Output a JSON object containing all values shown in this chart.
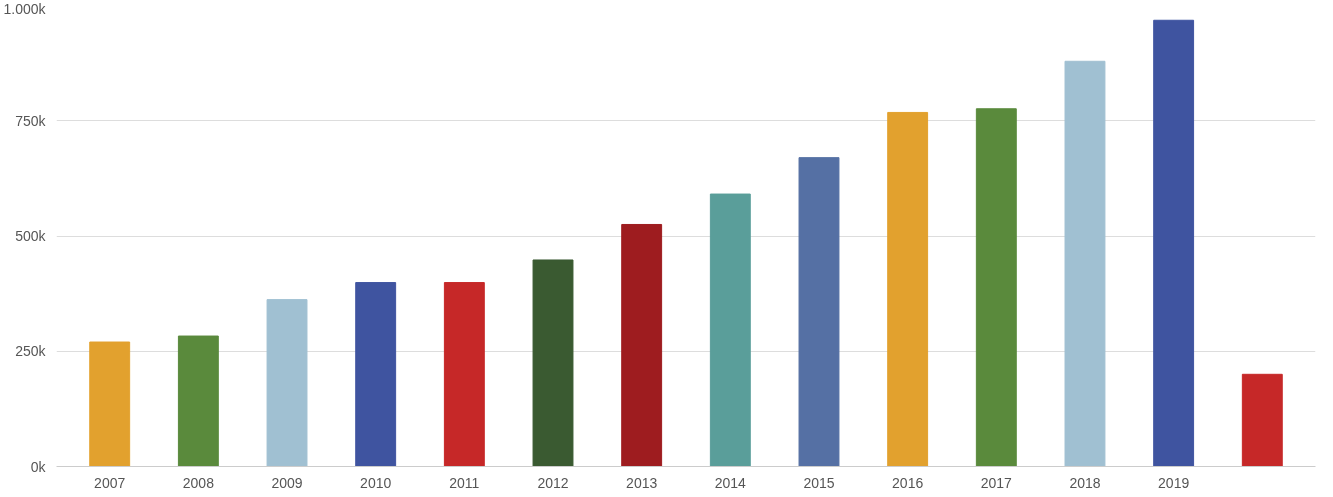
{
  "chart_data": {
    "type": "bar",
    "categories": [
      "2007",
      "2008",
      "2009",
      "2010",
      "2011",
      "2012",
      "2013",
      "2014",
      "2015",
      "2016",
      "2017",
      "2018",
      "2019",
      null
    ],
    "values": [
      270,
      283,
      362,
      399,
      399,
      448,
      525,
      591,
      670,
      768,
      776,
      879,
      968,
      200
    ],
    "colors": [
      "#e2a12e",
      "#5a8a3c",
      "#a0c0d2",
      "#3f54a0",
      "#c62828",
      "#3a5a31",
      "#9e1c1f",
      "#5a9e9a",
      "#5570a4",
      "#e2a12e",
      "#5a8a3c",
      "#a0c0d2",
      "#3f54a0",
      "#c62828"
    ],
    "ylim": [
      0,
      1000
    ],
    "yticks": [
      {
        "value": 0,
        "label": "0k"
      },
      {
        "value": 250,
        "label": "250k"
      },
      {
        "value": 500,
        "label": "500k"
      },
      {
        "value": 750,
        "label": "750k"
      },
      {
        "value": 1000,
        "label": "1.000k"
      }
    ],
    "grid": "y"
  }
}
